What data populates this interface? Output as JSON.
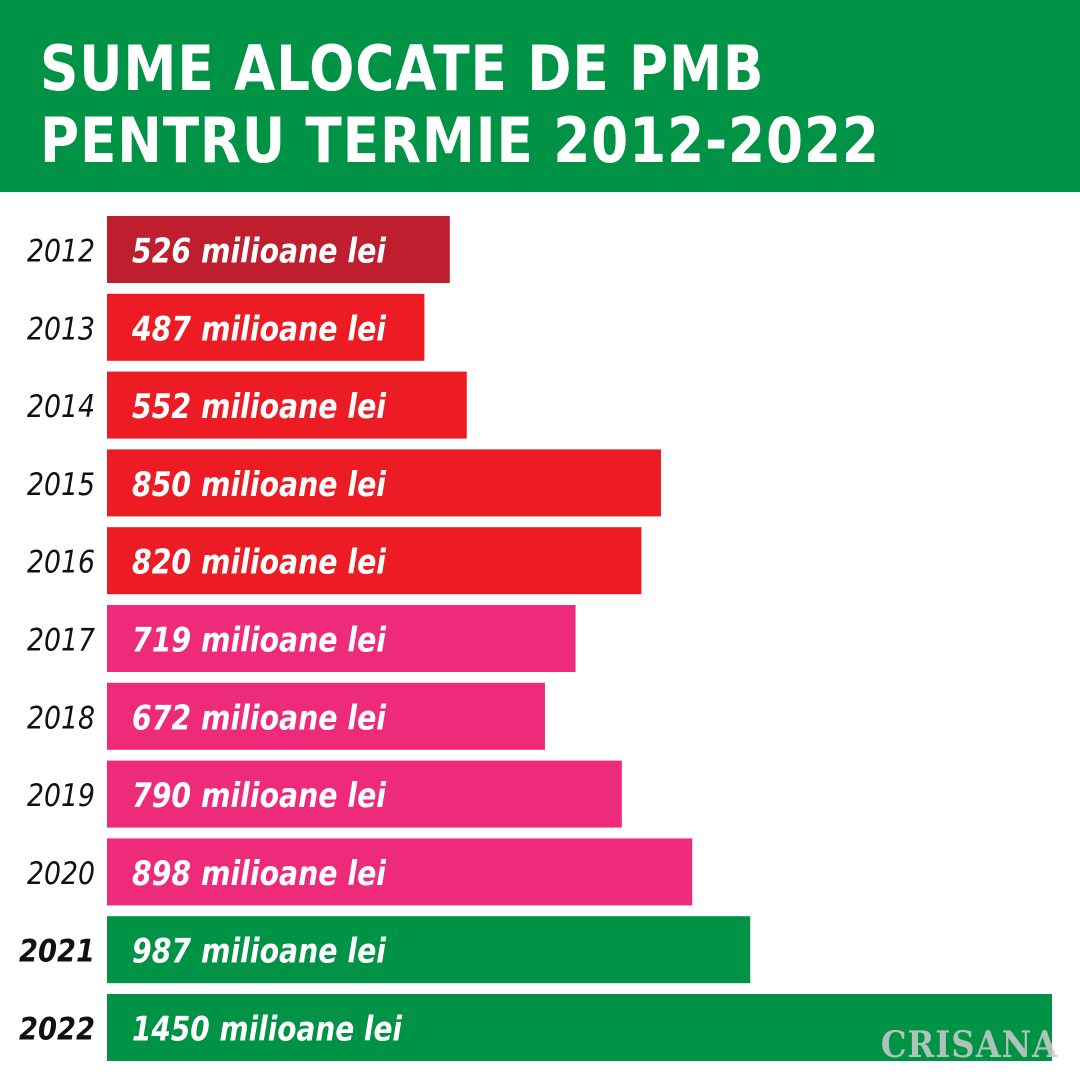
{
  "header": {
    "title_line_1": "SUME ALOCATE DE PMB",
    "title_line_2": "PENTRU TERMIE 2012-2022"
  },
  "watermark": "CRISANA",
  "colors": {
    "header_bg": "#009245",
    "dark_red": "#BE1E2D",
    "red": "#ED1C24",
    "pink": "#EE2A7B",
    "green": "#009245"
  },
  "chart_data": {
    "type": "bar",
    "orientation": "horizontal",
    "categories": [
      "2012",
      "2013",
      "2014",
      "2015",
      "2016",
      "2017",
      "2018",
      "2019",
      "2020",
      "2021",
      "2022"
    ],
    "values": [
      526,
      487,
      552,
      850,
      820,
      719,
      672,
      790,
      898,
      987,
      1450
    ],
    "unit": "milioane lei",
    "bar_labels": [
      "526 milioane lei",
      "487 milioane lei",
      "552 milioane lei",
      "850 milioane lei",
      "820 milioane lei",
      "719 milioane lei",
      "672 milioane lei",
      "790 milioane lei",
      "898 milioane lei",
      "987 milioane lei",
      "1450 milioane lei"
    ],
    "bar_colors": [
      "#BE1E2D",
      "#ED1C24",
      "#ED1C24",
      "#ED1C24",
      "#ED1C24",
      "#EE2A7B",
      "#EE2A7B",
      "#EE2A7B",
      "#EE2A7B",
      "#009245",
      "#009245"
    ],
    "bold_categories": [
      "2021",
      "2022"
    ],
    "title": "SUME ALOCATE DE PMB PENTRU TERMIE 2012-2022",
    "xlabel": "",
    "ylabel": "",
    "grid": false,
    "legend": "none"
  }
}
